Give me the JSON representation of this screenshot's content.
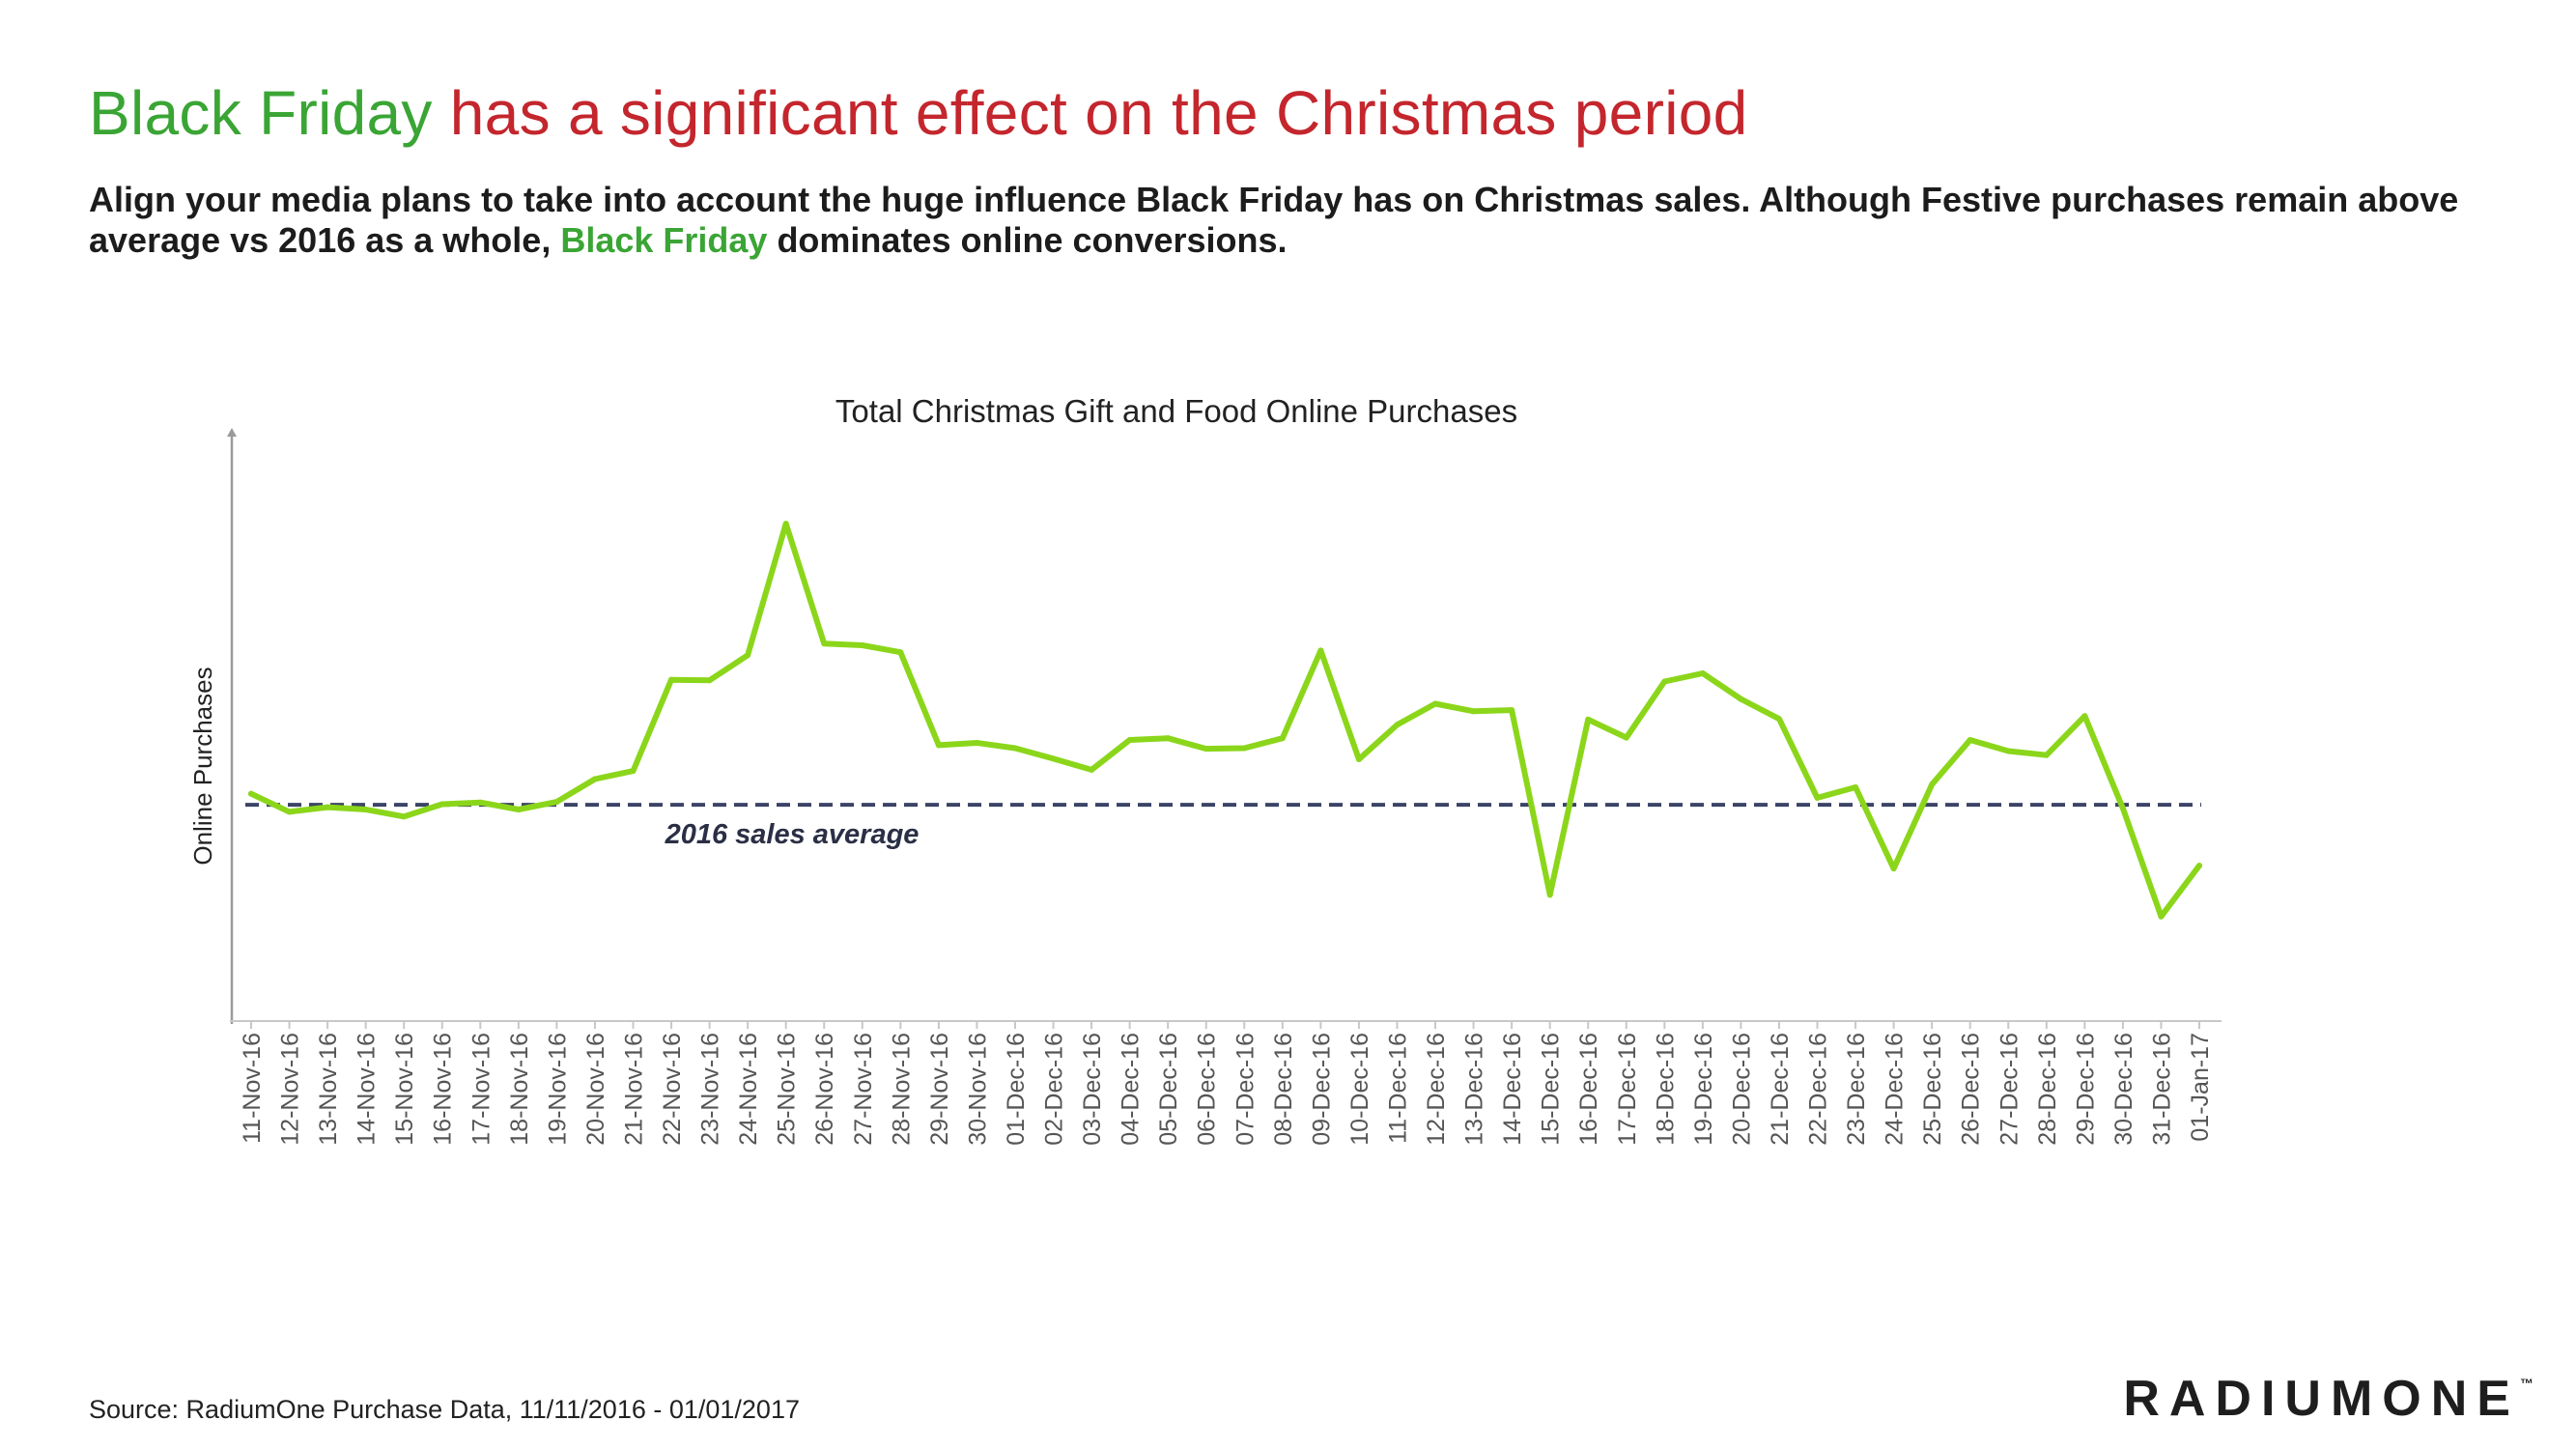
{
  "header": {
    "title_highlight": "Black Friday",
    "title_rest": " has a significant effect on the Christmas period",
    "subtitle_part1": "Align your media plans to take into account the huge influence Black Friday has on Christmas sales.  Although Festive purchases remain above average vs 2016 as a whole, ",
    "subtitle_highlight": "Black Friday",
    "subtitle_part2": " dominates online conversions."
  },
  "chart_data": {
    "type": "line",
    "title": "Total Christmas Gift and Food Online Purchases",
    "xlabel": "",
    "ylabel": "Online Purchases",
    "ylim": [
      0,
      100
    ],
    "y_tick_labels": false,
    "categories": [
      "11-Nov-16",
      "12-Nov-16",
      "13-Nov-16",
      "14-Nov-16",
      "15-Nov-16",
      "16-Nov-16",
      "17-Nov-16",
      "18-Nov-16",
      "19-Nov-16",
      "20-Nov-16",
      "21-Nov-16",
      "22-Nov-16",
      "23-Nov-16",
      "24-Nov-16",
      "25-Nov-16",
      "26-Nov-16",
      "27-Nov-16",
      "28-Nov-16",
      "29-Nov-16",
      "30-Nov-16",
      "01-Dec-16",
      "02-Dec-16",
      "03-Dec-16",
      "04-Dec-16",
      "05-Dec-16",
      "06-Dec-16",
      "07-Dec-16",
      "08-Dec-16",
      "09-Dec-16",
      "10-Dec-16",
      "11-Dec-16",
      "12-Dec-16",
      "13-Dec-16",
      "14-Dec-16",
      "15-Dec-16",
      "16-Dec-16",
      "17-Dec-16",
      "18-Dec-16",
      "19-Dec-16",
      "20-Dec-16",
      "21-Dec-16",
      "22-Dec-16",
      "23-Dec-16",
      "24-Dec-16",
      "25-Dec-16",
      "26-Dec-16",
      "27-Dec-16",
      "28-Dec-16",
      "29-Dec-16",
      "30-Dec-16",
      "31-Dec-16",
      "01-Jan-17"
    ],
    "series": [
      {
        "name": "Total Christmas Gift and Food Online Purchases",
        "color": "#8bd61a",
        "values": [
          38.9,
          35.8,
          36.6,
          36.2,
          35.0,
          37.1,
          37.4,
          36.2,
          37.5,
          41.4,
          42.8,
          58.4,
          58.3,
          62.6,
          85.1,
          64.6,
          64.3,
          63.1,
          47.2,
          47.6,
          46.7,
          44.9,
          43.0,
          48.1,
          48.4,
          46.6,
          46.7,
          48.4,
          63.4,
          44.8,
          50.7,
          54.3,
          53.0,
          53.2,
          21.6,
          51.6,
          48.5,
          58.1,
          59.5,
          55.1,
          51.7,
          38.2,
          40.0,
          26.1,
          40.5,
          48.1,
          46.2,
          45.5,
          52.2,
          36.4,
          17.9,
          26.6
        ]
      }
    ],
    "reference_lines": [
      {
        "label": "2016 sales average",
        "value": 37.0,
        "color": "#3b4466",
        "style": "dashed"
      }
    ]
  },
  "footer": {
    "source": "Source: RadiumOne Purchase Data, 11/11/2016 - 01/01/2017",
    "logo_text": "RADIUMONE",
    "logo_tm": "™"
  }
}
